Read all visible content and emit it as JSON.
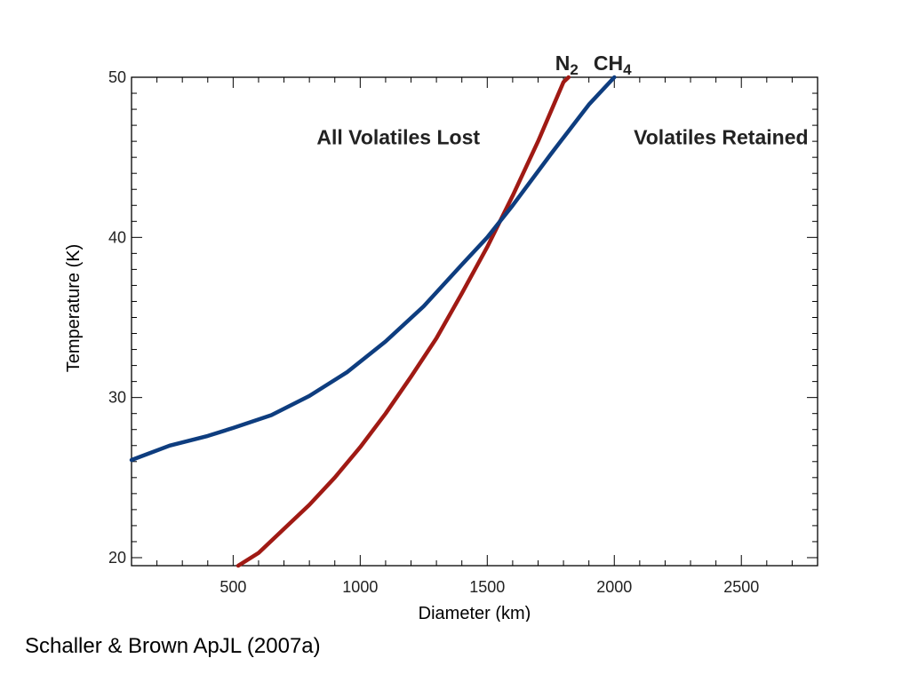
{
  "citation": "Schaller & Brown ApJL (2007a)",
  "chart_data": {
    "type": "line",
    "title": "",
    "xlabel": "Diameter (km)",
    "ylabel": "Temperature (K)",
    "xlim": [
      100,
      2800
    ],
    "ylim": [
      19.5,
      50
    ],
    "x_ticks": [
      500,
      1000,
      1500,
      2000,
      2500
    ],
    "y_ticks": [
      20,
      30,
      40,
      50
    ],
    "grid": false,
    "legend": "none",
    "annotations": [
      {
        "text": "All Volatiles Lost",
        "x": 1150,
        "y": 45.8
      },
      {
        "text": "Volatiles Retained",
        "x": 2420,
        "y": 45.8
      }
    ],
    "series": [
      {
        "name": "N",
        "subscript": "2",
        "color": "#a01a14",
        "x": [
          520,
          600,
          700,
          800,
          900,
          1000,
          1100,
          1200,
          1300,
          1400,
          1500,
          1600,
          1700,
          1800,
          1820
        ],
        "y": [
          19.5,
          20.3,
          21.8,
          23.3,
          25.0,
          26.9,
          29.0,
          31.3,
          33.7,
          36.5,
          39.4,
          42.6,
          46.0,
          49.7,
          50.0
        ]
      },
      {
        "name": "CH",
        "subscript": "4",
        "color": "#0e3d7f",
        "x": [
          100,
          250,
          400,
          500,
          650,
          800,
          950,
          1100,
          1250,
          1400,
          1500,
          1600,
          1750,
          1900,
          2000
        ],
        "y": [
          26.1,
          27.0,
          27.6,
          28.1,
          28.9,
          30.1,
          31.6,
          33.5,
          35.7,
          38.3,
          40.0,
          42.0,
          45.2,
          48.3,
          50.0
        ]
      }
    ]
  }
}
